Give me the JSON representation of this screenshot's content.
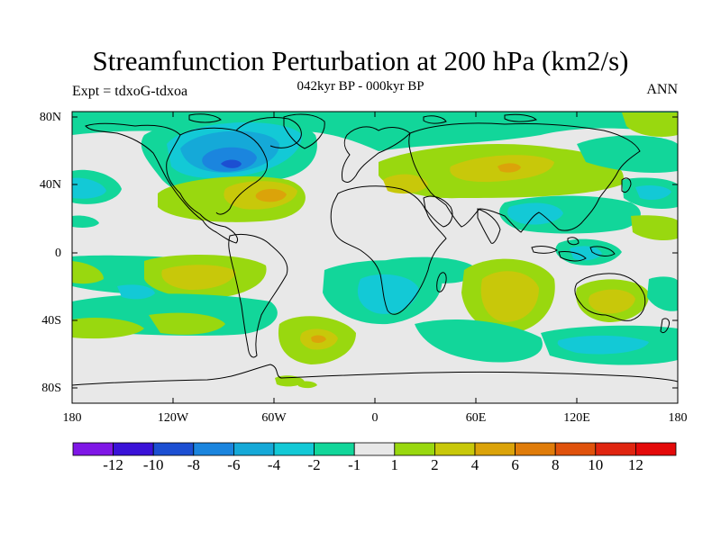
{
  "title": "Streamfunction Perturbation at 200 hPa (km2/s)",
  "subtitle": "042kyr BP - 000kyr BP",
  "left_label": "Expt = tdxoG-tdxoa",
  "right_label": "ANN",
  "lat_labels": [
    "80N",
    "40N",
    "0",
    "40S",
    "80S"
  ],
  "lon_labels": [
    "180",
    "120W",
    "60W",
    "0",
    "60E",
    "120E",
    "180"
  ],
  "colorbar": {
    "labels": [
      "-12",
      "-10",
      "-8",
      "-6",
      "-4",
      "-2",
      "-1",
      "1",
      "2",
      "4",
      "6",
      "8",
      "10",
      "12"
    ],
    "colors": [
      "#7f17e6",
      "#3a12d8",
      "#1c4fd2",
      "#1b85de",
      "#15a9d8",
      "#13c9d6",
      "#12d69a",
      "#e8e8e8",
      "#99d80f",
      "#c8c80a",
      "#dba30a",
      "#e07c0a",
      "#e0520c",
      "#e02510",
      "#e40a0a"
    ]
  }
}
